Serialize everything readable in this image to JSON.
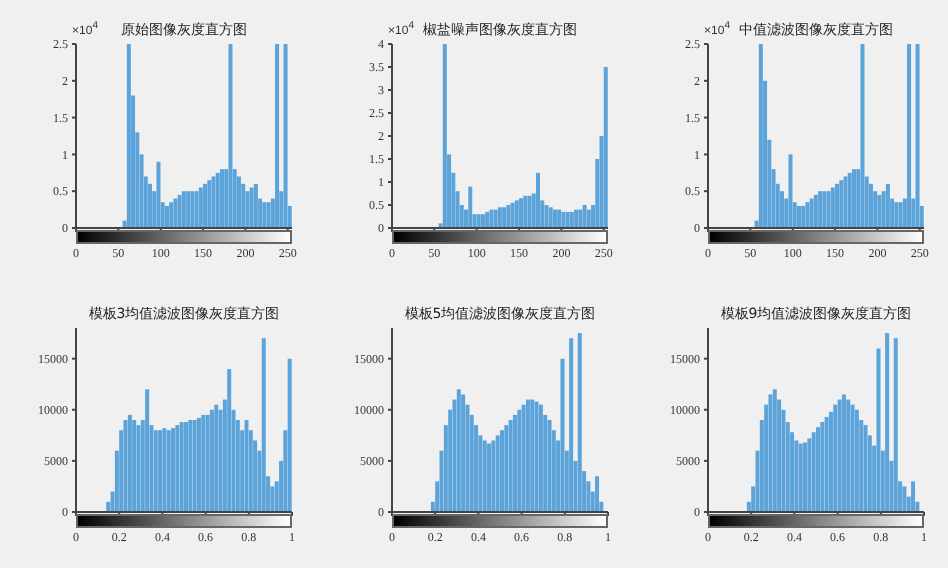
{
  "chart_data": [
    {
      "type": "histogram",
      "title": "原始图像灰度直方图",
      "annotations": [
        "×10$^{4}$"
      ],
      "color": "#5ba3d9",
      "xlim": [
        0,
        255
      ],
      "xticks": [
        0,
        50,
        100,
        150,
        200,
        250
      ],
      "ylim": [
        0,
        2.5
      ],
      "yticks": [
        0,
        0.5,
        1,
        1.5,
        2,
        2.5
      ],
      "bins": [
        55,
        60,
        65,
        70,
        75,
        80,
        85,
        90,
        95,
        100,
        105,
        110,
        115,
        120,
        125,
        130,
        135,
        140,
        145,
        150,
        155,
        160,
        165,
        170,
        175,
        180,
        185,
        190,
        195,
        200,
        205,
        210,
        215,
        220,
        225,
        230,
        235,
        240,
        245,
        250,
        255
      ],
      "values": [
        0.1,
        2.5,
        1.8,
        1.3,
        1.0,
        0.7,
        0.6,
        0.5,
        0.9,
        0.35,
        0.3,
        0.35,
        0.4,
        0.45,
        0.5,
        0.5,
        0.5,
        0.5,
        0.55,
        0.6,
        0.65,
        0.7,
        0.75,
        0.8,
        0.8,
        2.5,
        0.8,
        0.7,
        0.6,
        0.5,
        0.55,
        0.6,
        0.4,
        0.35,
        0.35,
        0.4,
        2.5,
        0.5,
        2.5,
        0.3
      ]
    },
    {
      "type": "histogram",
      "title": "椒盐噪声图像灰度直方图",
      "annotations": [
        "×10$^{4}$"
      ],
      "color": "#5ba3d9",
      "xlim": [
        0,
        255
      ],
      "xticks": [
        0,
        50,
        100,
        150,
        200,
        250
      ],
      "ylim": [
        0,
        4
      ],
      "yticks": [
        0,
        0.5,
        1,
        1.5,
        2,
        2.5,
        3,
        3.5,
        4
      ],
      "bins": [
        55,
        60,
        65,
        70,
        75,
        80,
        85,
        90,
        95,
        100,
        105,
        110,
        115,
        120,
        125,
        130,
        135,
        140,
        145,
        150,
        155,
        160,
        165,
        170,
        175,
        180,
        185,
        190,
        195,
        200,
        205,
        210,
        215,
        220,
        225,
        230,
        235,
        240,
        245,
        250,
        255
      ],
      "values": [
        0.1,
        4,
        1.6,
        1.2,
        0.8,
        0.5,
        0.4,
        0.9,
        0.3,
        0.3,
        0.3,
        0.35,
        0.4,
        0.4,
        0.45,
        0.45,
        0.5,
        0.55,
        0.6,
        0.65,
        0.7,
        0.7,
        0.75,
        1.2,
        0.6,
        0.5,
        0.45,
        0.4,
        0.4,
        0.35,
        0.35,
        0.35,
        0.4,
        0.4,
        0.5,
        0.4,
        0.5,
        1.5,
        2.0,
        3.5
      ]
    },
    {
      "type": "histogram",
      "title": "中值滤波图像灰度直方图",
      "annotations": [
        "×10$^{4}$"
      ],
      "color": "#5ba3d9",
      "xlim": [
        0,
        255
      ],
      "xticks": [
        0,
        50,
        100,
        150,
        200,
        250
      ],
      "ylim": [
        0,
        2.5
      ],
      "yticks": [
        0,
        0.5,
        1,
        1.5,
        2,
        2.5
      ],
      "bins": [
        55,
        60,
        65,
        70,
        75,
        80,
        85,
        90,
        95,
        100,
        105,
        110,
        115,
        120,
        125,
        130,
        135,
        140,
        145,
        150,
        155,
        160,
        165,
        170,
        175,
        180,
        185,
        190,
        195,
        200,
        205,
        210,
        215,
        220,
        225,
        230,
        235,
        240,
        245,
        250,
        255
      ],
      "values": [
        0.1,
        2.5,
        2.0,
        1.2,
        0.8,
        0.6,
        0.5,
        0.4,
        1.0,
        0.35,
        0.3,
        0.3,
        0.35,
        0.4,
        0.45,
        0.5,
        0.5,
        0.5,
        0.55,
        0.6,
        0.65,
        0.7,
        0.75,
        0.8,
        0.8,
        2.5,
        0.7,
        0.6,
        0.5,
        0.45,
        0.5,
        0.6,
        0.4,
        0.35,
        0.35,
        0.4,
        2.5,
        0.4,
        2.5,
        0.3
      ]
    },
    {
      "type": "histogram",
      "title": "模板3均值滤波图像灰度直方图",
      "color": "#5ba3d9",
      "xlim": [
        0,
        1
      ],
      "xticks": [
        0,
        0.2,
        0.4,
        0.6,
        0.8,
        1
      ],
      "ylim": [
        0,
        18000
      ],
      "yticks": [
        0,
        5000,
        10000,
        15000
      ],
      "bins": [
        0.14,
        0.16,
        0.18,
        0.2,
        0.22,
        0.24,
        0.26,
        0.28,
        0.3,
        0.32,
        0.34,
        0.36,
        0.38,
        0.4,
        0.42,
        0.44,
        0.46,
        0.48,
        0.5,
        0.52,
        0.54,
        0.56,
        0.58,
        0.6,
        0.62,
        0.64,
        0.66,
        0.68,
        0.7,
        0.72,
        0.74,
        0.76,
        0.78,
        0.8,
        0.82,
        0.84,
        0.86,
        0.88,
        0.9,
        0.92,
        0.94,
        0.96,
        0.98,
        1
      ],
      "values": [
        1000,
        2000,
        6000,
        8000,
        9000,
        9500,
        9000,
        8500,
        9000,
        12000,
        8500,
        8000,
        8000,
        8200,
        8000,
        8200,
        8500,
        8800,
        8800,
        9000,
        9000,
        9200,
        9500,
        9500,
        10000,
        10500,
        10000,
        11000,
        14000,
        10000,
        9000,
        8000,
        9000,
        8000,
        7000,
        6000,
        17000,
        3500,
        2500,
        3000,
        5000,
        8000,
        15000
      ]
    },
    {
      "type": "histogram",
      "title": "模板5均值滤波图像灰度直方图",
      "color": "#5ba3d9",
      "xlim": [
        0,
        1
      ],
      "xticks": [
        0,
        0.2,
        0.4,
        0.6,
        0.8,
        1
      ],
      "ylim": [
        0,
        18000
      ],
      "yticks": [
        0,
        5000,
        10000,
        15000
      ],
      "bins": [
        0.18,
        0.2,
        0.22,
        0.24,
        0.26,
        0.28,
        0.3,
        0.32,
        0.34,
        0.36,
        0.38,
        0.4,
        0.42,
        0.44,
        0.46,
        0.48,
        0.5,
        0.52,
        0.54,
        0.56,
        0.58,
        0.6,
        0.62,
        0.64,
        0.66,
        0.68,
        0.7,
        0.72,
        0.74,
        0.76,
        0.78,
        0.8,
        0.82,
        0.84,
        0.86,
        0.88,
        0.9,
        0.92,
        0.94,
        0.96,
        0.98
      ],
      "values": [
        1000,
        3000,
        6000,
        8500,
        10000,
        11000,
        12000,
        11500,
        10500,
        9500,
        8500,
        7500,
        7000,
        6700,
        7000,
        7500,
        8000,
        8500,
        9000,
        9500,
        10000,
        10500,
        11000,
        11000,
        10800,
        10500,
        9500,
        9000,
        8000,
        7000,
        15000,
        6000,
        17000,
        5000,
        17500,
        4000,
        3000,
        2000,
        3500,
        1000
      ]
    },
    {
      "type": "histogram",
      "title": "模板9均值滤波图像灰度直方图",
      "color": "#5ba3d9",
      "xlim": [
        0,
        1
      ],
      "xticks": [
        0,
        0.2,
        0.4,
        0.6,
        0.8,
        1
      ],
      "ylim": [
        0,
        18000
      ],
      "yticks": [
        0,
        5000,
        10000,
        15000
      ],
      "bins": [
        0.18,
        0.2,
        0.22,
        0.24,
        0.26,
        0.28,
        0.3,
        0.32,
        0.34,
        0.36,
        0.38,
        0.4,
        0.42,
        0.44,
        0.46,
        0.48,
        0.5,
        0.52,
        0.54,
        0.56,
        0.58,
        0.6,
        0.62,
        0.64,
        0.66,
        0.68,
        0.7,
        0.72,
        0.74,
        0.76,
        0.78,
        0.8,
        0.82,
        0.84,
        0.86,
        0.88,
        0.9,
        0.92,
        0.94,
        0.96,
        0.98
      ],
      "values": [
        1000,
        2500,
        6000,
        9000,
        10500,
        11500,
        12000,
        11000,
        10000,
        8800,
        7800,
        7000,
        6700,
        6800,
        7200,
        7800,
        8300,
        8800,
        9300,
        9800,
        10500,
        11000,
        11500,
        11000,
        10500,
        10000,
        9000,
        8500,
        7500,
        6500,
        16000,
        6000,
        17500,
        5000,
        17000,
        3000,
        2500,
        1500,
        3000,
        1000
      ]
    }
  ]
}
